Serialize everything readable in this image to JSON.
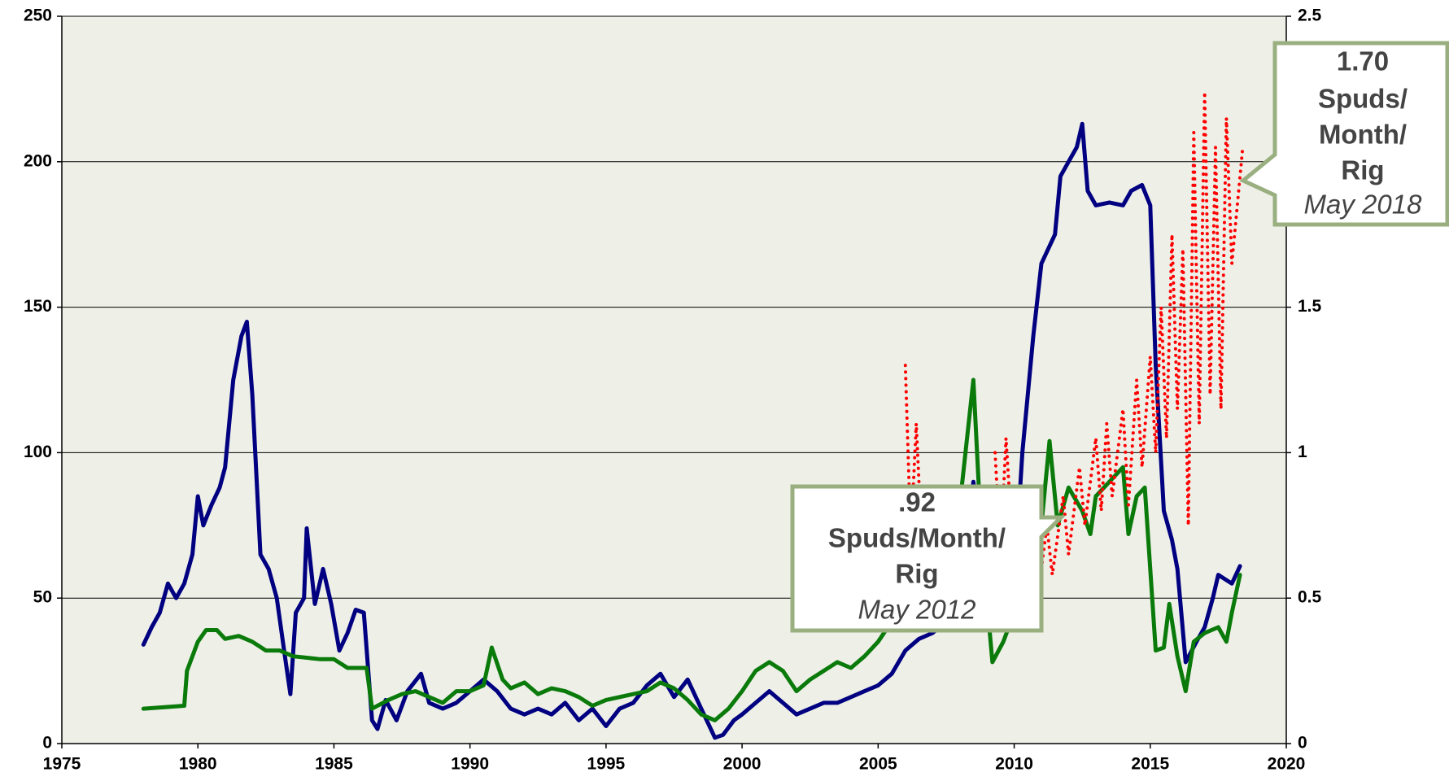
{
  "chart_data": {
    "type": "line",
    "xlim": [
      1975,
      2020
    ],
    "xticks": [
      1975,
      1980,
      1985,
      1990,
      1995,
      2000,
      2005,
      2010,
      2015,
      2020
    ],
    "ylim": [
      0,
      250
    ],
    "yticks": [
      0,
      50,
      100,
      150,
      200,
      250
    ],
    "y2lim": [
      0,
      2.5
    ],
    "y2ticks": [
      0,
      0.5,
      1,
      1.5,
      2,
      2.5
    ],
    "grid": true,
    "series": [
      {
        "color": "#000080",
        "style": "solid",
        "x": [
          1978.0,
          1978.3,
          1978.6,
          1978.9,
          1979.2,
          1979.5,
          1979.8,
          1980.0,
          1980.2,
          1980.5,
          1980.8,
          1981.0,
          1981.3,
          1981.6,
          1981.8,
          1982.0,
          1982.3,
          1982.6,
          1982.9,
          1983.2,
          1983.4,
          1983.6,
          1983.9,
          1984.0,
          1984.3,
          1984.6,
          1984.9,
          1985.2,
          1985.5,
          1985.8,
          1986.1,
          1986.4,
          1986.6,
          1986.9,
          1987.3,
          1987.7,
          1988.2,
          1988.5,
          1989.0,
          1989.5,
          1990.0,
          1990.5,
          1991.0,
          1991.5,
          1992.0,
          1992.5,
          1993.0,
          1993.5,
          1994.0,
          1994.5,
          1995.0,
          1995.5,
          1996.0,
          1996.5,
          1997.0,
          1997.5,
          1998.0,
          1998.5,
          1999.0,
          1999.3,
          1999.7,
          2000.0,
          2000.5,
          2001.0,
          2001.5,
          2002.0,
          2002.5,
          2003.0,
          2003.5,
          2004.0,
          2004.5,
          2005.0,
          2005.5,
          2006.0,
          2006.5,
          2007.0,
          2007.5,
          2008.0,
          2008.5,
          2009.0,
          2009.5,
          2010.0,
          2010.3,
          2010.7,
          2011.0,
          2011.5,
          2011.7,
          2012.0,
          2012.3,
          2012.5,
          2012.7,
          2013.0,
          2013.5,
          2014.0,
          2014.3,
          2014.7,
          2015.0,
          2015.2,
          2015.5,
          2015.8,
          2016.0,
          2016.3,
          2016.7,
          2017.0,
          2017.3,
          2017.5,
          2018.0,
          2018.3
        ],
        "values": [
          34,
          40,
          45,
          55,
          50,
          55,
          65,
          85,
          75,
          82,
          88,
          95,
          125,
          140,
          145,
          120,
          65,
          60,
          50,
          30,
          17,
          45,
          50,
          74,
          48,
          60,
          48,
          32,
          38,
          46,
          45,
          8,
          5,
          15,
          8,
          18,
          24,
          14,
          12,
          14,
          18,
          22,
          18,
          12,
          10,
          12,
          10,
          14,
          8,
          12,
          6,
          12,
          14,
          20,
          24,
          16,
          22,
          12,
          2,
          3,
          8,
          10,
          14,
          18,
          14,
          10,
          12,
          14,
          14,
          16,
          18,
          20,
          24,
          32,
          36,
          38,
          42,
          48,
          90,
          48,
          40,
          55,
          100,
          140,
          165,
          175,
          195,
          200,
          205,
          213,
          190,
          185,
          186,
          185,
          190,
          192,
          185,
          130,
          80,
          70,
          60,
          28,
          35,
          40,
          50,
          58,
          55,
          61
        ]
      },
      {
        "color": "#0a7a0a",
        "style": "solid",
        "axis": "y2",
        "x": [
          1978.0,
          1979.5,
          1979.6,
          1980.0,
          1980.3,
          1980.7,
          1981.0,
          1981.5,
          1982.0,
          1982.5,
          1983.0,
          1983.5,
          1984.5,
          1985.0,
          1985.5,
          1986.2,
          1986.4,
          1987.0,
          1987.5,
          1988.0,
          1988.5,
          1989.0,
          1989.5,
          1990.0,
          1990.5,
          1990.8,
          1991.2,
          1991.5,
          1992.0,
          1992.5,
          1993.0,
          1993.5,
          1994.0,
          1994.5,
          1995.0,
          1995.5,
          1996.0,
          1996.5,
          1997.0,
          1997.5,
          1998.0,
          1998.5,
          1999.0,
          1999.5,
          2000.0,
          2000.5,
          2001.0,
          2001.5,
          2002.0,
          2002.5,
          2003.0,
          2003.5,
          2004.0,
          2004.5,
          2005.0,
          2005.5,
          2006.0,
          2006.5,
          2007.0,
          2007.5,
          2008.0,
          2008.5,
          2008.8,
          2009.2,
          2009.6,
          2010.0,
          2010.5,
          2011.0,
          2011.3,
          2011.6,
          2012.0,
          2012.5,
          2012.8,
          2013.0,
          2013.5,
          2014.0,
          2014.2,
          2014.5,
          2014.8,
          2015.0,
          2015.2,
          2015.5,
          2015.7,
          2016.0,
          2016.3,
          2016.6,
          2017.0,
          2017.5,
          2017.8,
          2018.0,
          2018.3
        ],
        "values": [
          0.12,
          0.13,
          0.25,
          0.35,
          0.39,
          0.39,
          0.36,
          0.37,
          0.35,
          0.32,
          0.32,
          0.3,
          0.29,
          0.29,
          0.26,
          0.26,
          0.12,
          0.15,
          0.17,
          0.18,
          0.16,
          0.14,
          0.18,
          0.18,
          0.2,
          0.33,
          0.22,
          0.19,
          0.21,
          0.17,
          0.19,
          0.18,
          0.16,
          0.13,
          0.15,
          0.16,
          0.17,
          0.18,
          0.21,
          0.19,
          0.15,
          0.1,
          0.08,
          0.12,
          0.18,
          0.25,
          0.28,
          0.25,
          0.18,
          0.22,
          0.25,
          0.28,
          0.26,
          0.3,
          0.35,
          0.42,
          0.5,
          0.55,
          0.65,
          0.75,
          0.82,
          1.25,
          0.7,
          0.28,
          0.35,
          0.45,
          0.6,
          0.75,
          1.04,
          0.75,
          0.88,
          0.8,
          0.72,
          0.85,
          0.9,
          0.95,
          0.72,
          0.85,
          0.88,
          0.6,
          0.32,
          0.33,
          0.48,
          0.3,
          0.18,
          0.35,
          0.38,
          0.4,
          0.35,
          0.45,
          0.58
        ]
      },
      {
        "color": "#ff0000",
        "style": "dotted",
        "axis": "y2",
        "x": [
          2006.0,
          2006.2,
          2006.4,
          2006.6,
          null,
          2009.3,
          2009.5,
          2009.7,
          2009.9,
          null,
          2011.0,
          2011.2,
          2011.4,
          2011.8,
          2012.0,
          2012.4,
          2012.6,
          2013.0,
          2013.2,
          2013.4,
          2013.6,
          2014.0,
          2014.2,
          2014.5,
          2014.7,
          2015.0,
          2015.2,
          2015.4,
          2015.6,
          2015.8,
          2016.0,
          2016.2,
          2016.4,
          2016.6,
          2016.8,
          2017.0,
          2017.2,
          2017.4,
          2017.6,
          2017.8,
          2018.0,
          2018.2,
          2018.4
        ],
        "values": [
          1.3,
          0.7,
          1.1,
          0.7,
          null,
          1.0,
          0.65,
          1.05,
          0.75,
          null,
          0.6,
          0.75,
          0.58,
          0.85,
          0.65,
          0.95,
          0.75,
          1.05,
          0.8,
          1.1,
          0.85,
          1.15,
          0.82,
          1.25,
          0.95,
          1.33,
          1.0,
          1.5,
          1.05,
          1.75,
          1.15,
          1.7,
          0.75,
          2.1,
          1.1,
          2.24,
          1.2,
          2.05,
          1.15,
          2.15,
          1.65,
          1.85,
          2.05
        ]
      }
    ],
    "annotations": [
      {
        "lines": [
          ".92",
          "Spuds/Month/",
          "Rig"
        ],
        "date": "May 2012"
      },
      {
        "lines": [
          "1.70",
          "Spuds/",
          "Month/",
          "Rig"
        ],
        "date": "May 2018"
      }
    ]
  }
}
